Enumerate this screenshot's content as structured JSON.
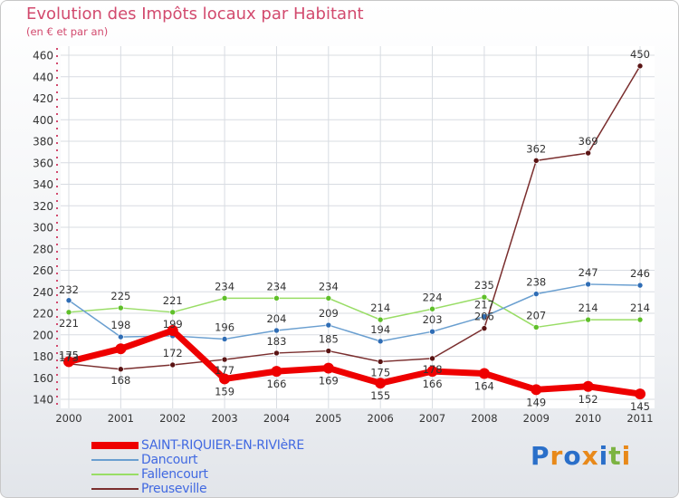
{
  "header": {
    "title": "Evolution des Impôts locaux par Habitant",
    "subtitle": "(en € et par an)"
  },
  "logo": {
    "text": "Proxiti",
    "letters": [
      {
        "ch": "P",
        "color": "#2a6fc9"
      },
      {
        "ch": "r",
        "color": "#e8891a"
      },
      {
        "ch": "o",
        "color": "#2a6fc9"
      },
      {
        "ch": "x",
        "color": "#e8891a"
      },
      {
        "ch": "i",
        "color": "#2a6fc9"
      },
      {
        "ch": "t",
        "color": "#7cb342"
      },
      {
        "ch": "i",
        "color": "#e8891a"
      }
    ]
  },
  "chart_data": {
    "type": "line",
    "title": "Evolution des Impôts locaux par Habitant",
    "subtitle": "(en € et par an)",
    "x": [
      "2000",
      "2001",
      "2002",
      "2003",
      "2004",
      "2005",
      "2006",
      "2007",
      "2008",
      "2009",
      "2010",
      "2011"
    ],
    "ylim": [
      140,
      460
    ],
    "yticks": [
      140,
      160,
      180,
      200,
      220,
      240,
      260,
      280,
      300,
      320,
      340,
      360,
      380,
      400,
      420,
      440,
      460
    ],
    "grid": true,
    "legend_position": "bottom-left",
    "series": [
      {
        "name": "SAINT-RIQUIER-EN-RIVIèRE",
        "color": "#ee0000",
        "width": 7,
        "marker": 6,
        "values": [
          175,
          187,
          204,
          159,
          166,
          169,
          155,
          166,
          164,
          149,
          152,
          145
        ],
        "labels": [
          "175",
          "",
          "",
          "159",
          "166",
          "169",
          "155",
          "166",
          "164",
          "149",
          "152",
          "145"
        ]
      },
      {
        "name": "Dancourt",
        "color": "#6a9fd0",
        "width": 1.5,
        "marker": 3,
        "values": [
          232,
          198,
          199,
          196,
          204,
          209,
          194,
          203,
          217,
          238,
          247,
          246
        ],
        "labels": [
          "232",
          "198",
          "199",
          "196",
          "204",
          "209",
          "194",
          "203",
          "217",
          "238",
          "247",
          "246"
        ]
      },
      {
        "name": "Fallencourt",
        "color": "#99dd66",
        "width": 1.5,
        "marker": 3,
        "values": [
          221,
          225,
          221,
          234,
          234,
          234,
          214,
          224,
          235,
          207,
          214,
          214
        ],
        "labels": [
          "221",
          "225",
          "221",
          "234",
          "234",
          "234",
          "214",
          "224",
          "235",
          "207",
          "214",
          "214"
        ]
      },
      {
        "name": "Preuseville",
        "color": "#7a2e2e",
        "width": 1.5,
        "marker": 3,
        "values": [
          173,
          168,
          172,
          177,
          183,
          185,
          175,
          178,
          206,
          362,
          369,
          450
        ],
        "labels": [
          "173",
          "168",
          "172",
          "177",
          "183",
          "185",
          "175",
          "178",
          "206",
          "362",
          "369",
          "450"
        ]
      }
    ]
  }
}
